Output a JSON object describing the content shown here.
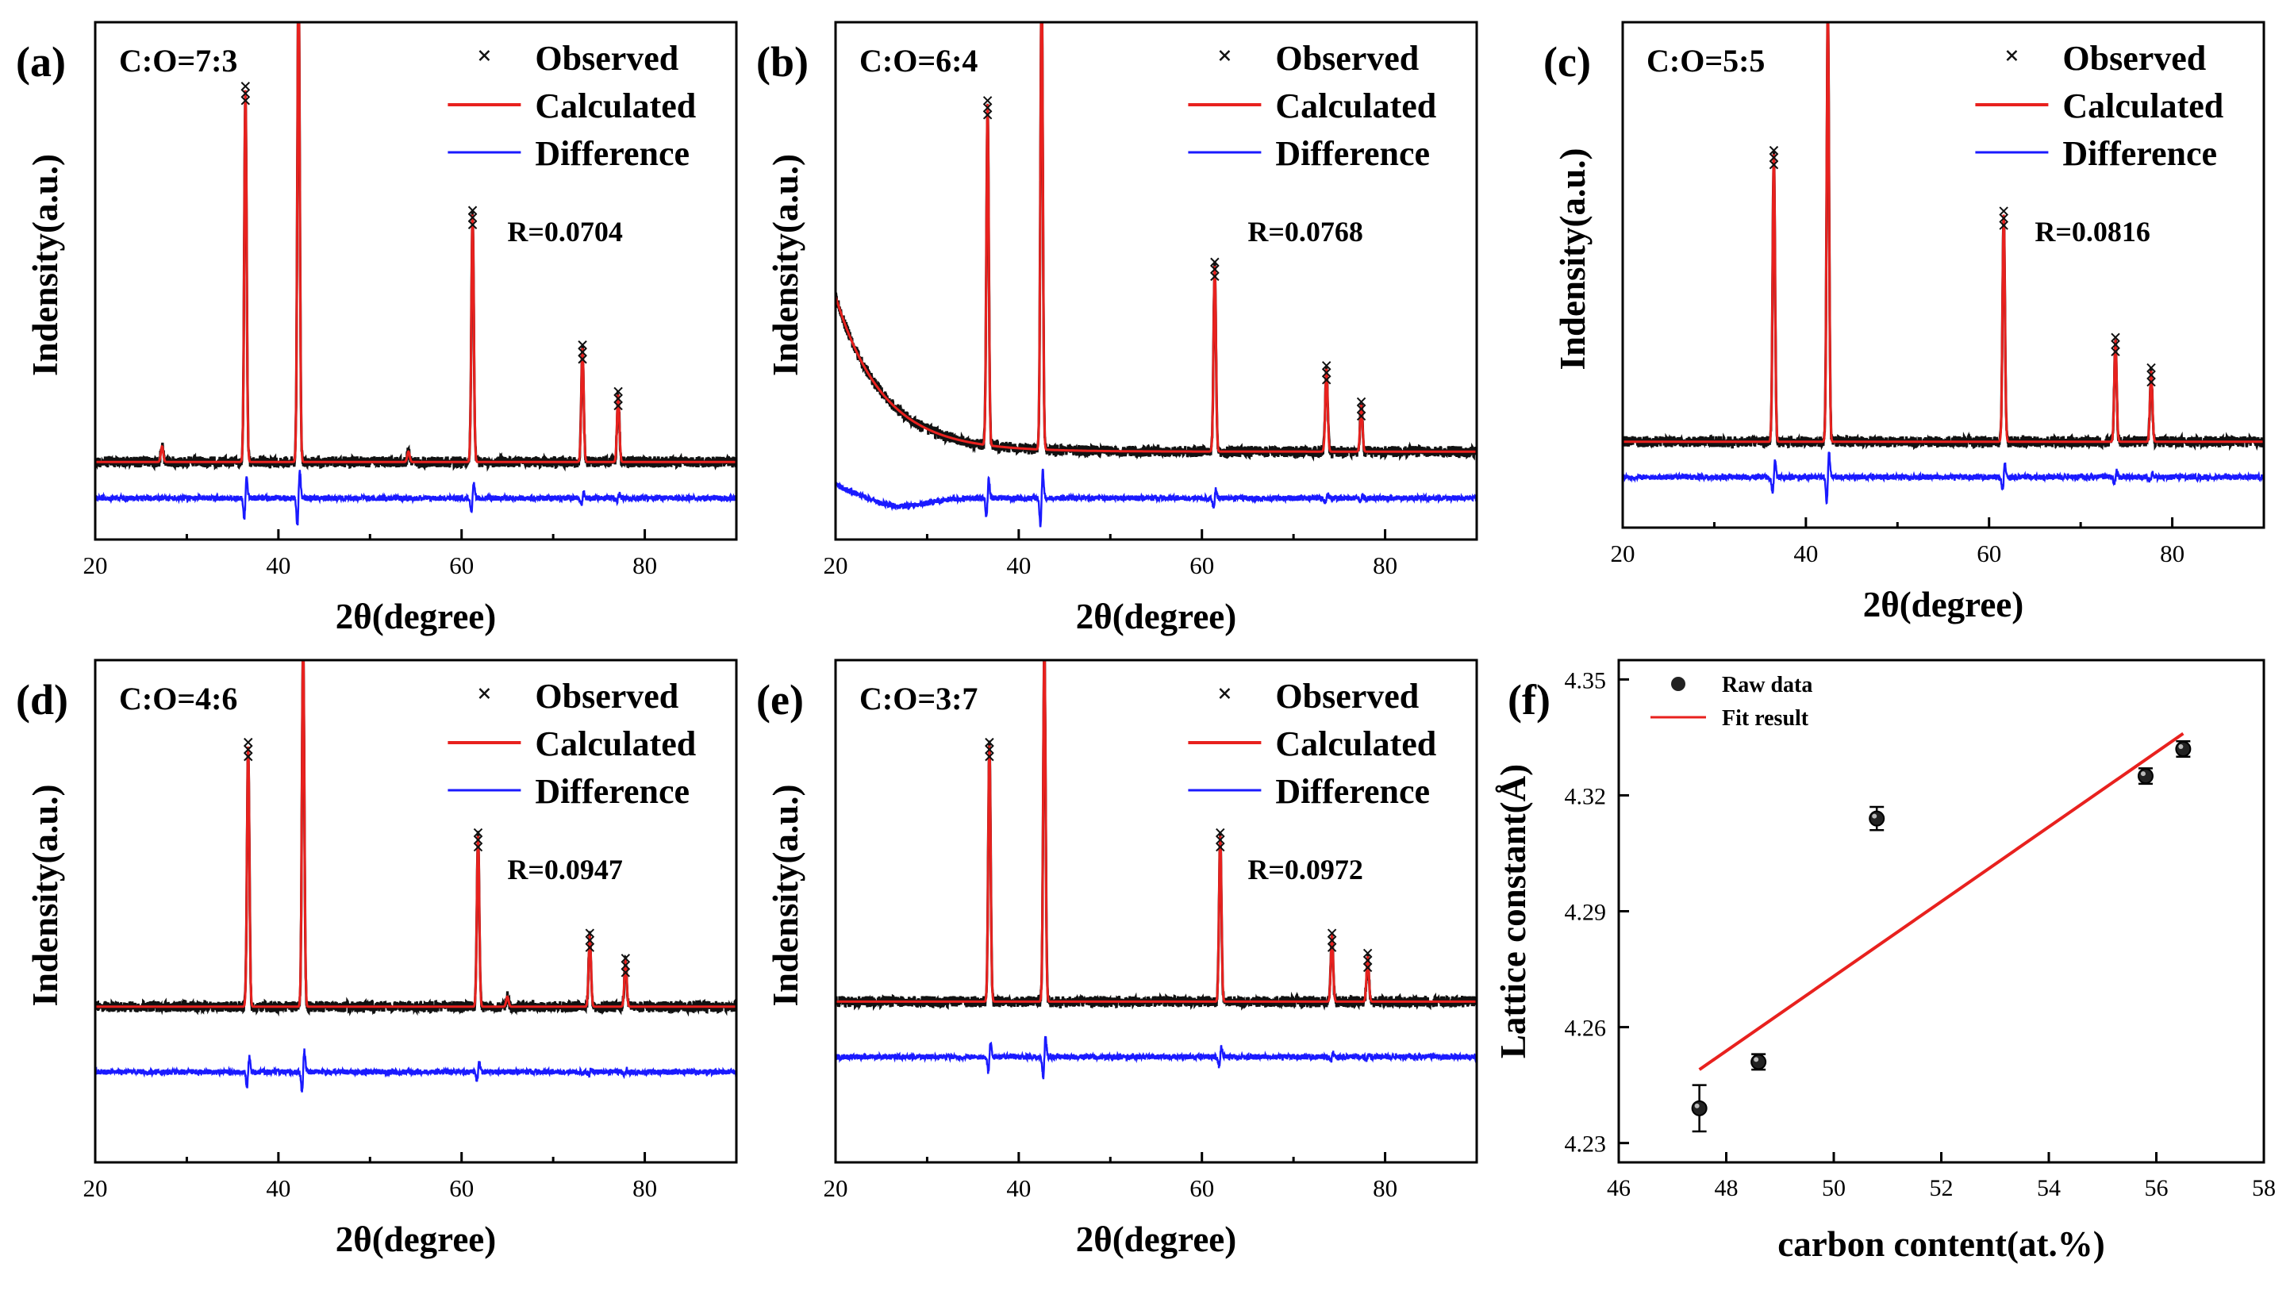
{
  "chart_data": [
    {
      "type": "line",
      "panel": "(a)",
      "ratio": "C:O=7:3",
      "r_factor": "R=0.0704",
      "xlabel": "2θ(degree)",
      "ylabel": "Indensity(a.u.)",
      "xlim": [
        20,
        90
      ],
      "xticks": [
        "20",
        "40",
        "60",
        "80"
      ],
      "legend": [
        "Observed",
        "Calculated",
        "Difference"
      ],
      "background": "flat",
      "peaks": [
        {
          "x": 27.3,
          "h": 0.03
        },
        {
          "x": 36.4,
          "h": 0.72
        },
        {
          "x": 42.2,
          "h": 0.96
        },
        {
          "x": 54.2,
          "h": 0.02
        },
        {
          "x": 61.2,
          "h": 0.48
        },
        {
          "x": 73.2,
          "h": 0.22
        },
        {
          "x": 77.1,
          "h": 0.13
        }
      ]
    },
    {
      "type": "line",
      "panel": "(b)",
      "ratio": "C:O=6:4",
      "r_factor": "R=0.0768",
      "xlabel": "2θ(degree)",
      "ylabel": "Indensity(a.u.)",
      "xlim": [
        20,
        90
      ],
      "xticks": [
        "20",
        "40",
        "60",
        "80"
      ],
      "legend": [
        "Observed",
        "Calculated",
        "Difference"
      ],
      "background": "decaying",
      "peaks": [
        {
          "x": 36.6,
          "h": 0.66
        },
        {
          "x": 42.5,
          "h": 0.92
        },
        {
          "x": 61.4,
          "h": 0.36
        },
        {
          "x": 73.6,
          "h": 0.16
        },
        {
          "x": 77.4,
          "h": 0.09
        }
      ]
    },
    {
      "type": "line",
      "panel": "(c)",
      "ratio": "C:O=5:5",
      "r_factor": "R=0.0816",
      "xlabel": "2θ(degree)",
      "ylabel": "Indensity(a.u.)",
      "xlim": [
        20,
        90
      ],
      "xticks": [
        "20",
        "40",
        "60",
        "80"
      ],
      "legend": [
        "Observed",
        "Calculated",
        "Difference"
      ],
      "background": "flat",
      "peaks": [
        {
          "x": 36.5,
          "h": 0.57
        },
        {
          "x": 42.4,
          "h": 0.86
        },
        {
          "x": 61.6,
          "h": 0.45
        },
        {
          "x": 73.8,
          "h": 0.2
        },
        {
          "x": 77.7,
          "h": 0.14
        }
      ]
    },
    {
      "type": "line",
      "panel": "(d)",
      "ratio": "C:O=4:6",
      "r_factor": "R=0.0947",
      "xlabel": "2θ(degree)",
      "ylabel": "Indensity(a.u.)",
      "xlim": [
        20,
        90
      ],
      "xticks": [
        "20",
        "40",
        "60",
        "80"
      ],
      "legend": [
        "Observed",
        "Calculated",
        "Difference"
      ],
      "background": "flat",
      "peaks": [
        {
          "x": 36.7,
          "h": 0.52
        },
        {
          "x": 42.7,
          "h": 0.73
        },
        {
          "x": 61.8,
          "h": 0.34
        },
        {
          "x": 65.0,
          "h": 0.02
        },
        {
          "x": 74.0,
          "h": 0.14
        },
        {
          "x": 77.9,
          "h": 0.09
        }
      ]
    },
    {
      "type": "line",
      "panel": "(e)",
      "ratio": "C:O=3:7",
      "r_factor": "R=0.0972",
      "xlabel": "2θ(degree)",
      "ylabel": "Indensity(a.u.)",
      "xlim": [
        20,
        90
      ],
      "xticks": [
        "20",
        "40",
        "60",
        "80"
      ],
      "legend": [
        "Observed",
        "Calculated",
        "Difference"
      ],
      "background": "flat",
      "peaks": [
        {
          "x": 36.8,
          "h": 0.51
        },
        {
          "x": 42.8,
          "h": 0.71
        },
        {
          "x": 62.0,
          "h": 0.33
        },
        {
          "x": 74.2,
          "h": 0.13
        },
        {
          "x": 78.1,
          "h": 0.09
        }
      ]
    },
    {
      "type": "scatter",
      "panel": "(f)",
      "xlabel": "carbon content(at.%)",
      "ylabel": "Lattice constant(Å)",
      "xlim": [
        46,
        58
      ],
      "ylim": [
        4.225,
        4.355
      ],
      "xticks": [
        "46",
        "48",
        "50",
        "52",
        "54",
        "56",
        "58"
      ],
      "yticks": [
        "4.23",
        "4.26",
        "4.29",
        "4.32",
        "4.35"
      ],
      "legend": [
        "Raw data",
        "Fit result"
      ],
      "points": [
        {
          "x": 47.5,
          "y": 4.239,
          "err": 0.006
        },
        {
          "x": 48.6,
          "y": 4.251,
          "err": 0.002
        },
        {
          "x": 50.8,
          "y": 4.314,
          "err": 0.003
        },
        {
          "x": 55.8,
          "y": 4.325,
          "err": 0.002
        },
        {
          "x": 56.5,
          "y": 4.332,
          "err": 0.002
        }
      ],
      "fit": {
        "x": [
          47.5,
          56.5
        ],
        "y": [
          4.249,
          4.336
        ]
      }
    }
  ]
}
